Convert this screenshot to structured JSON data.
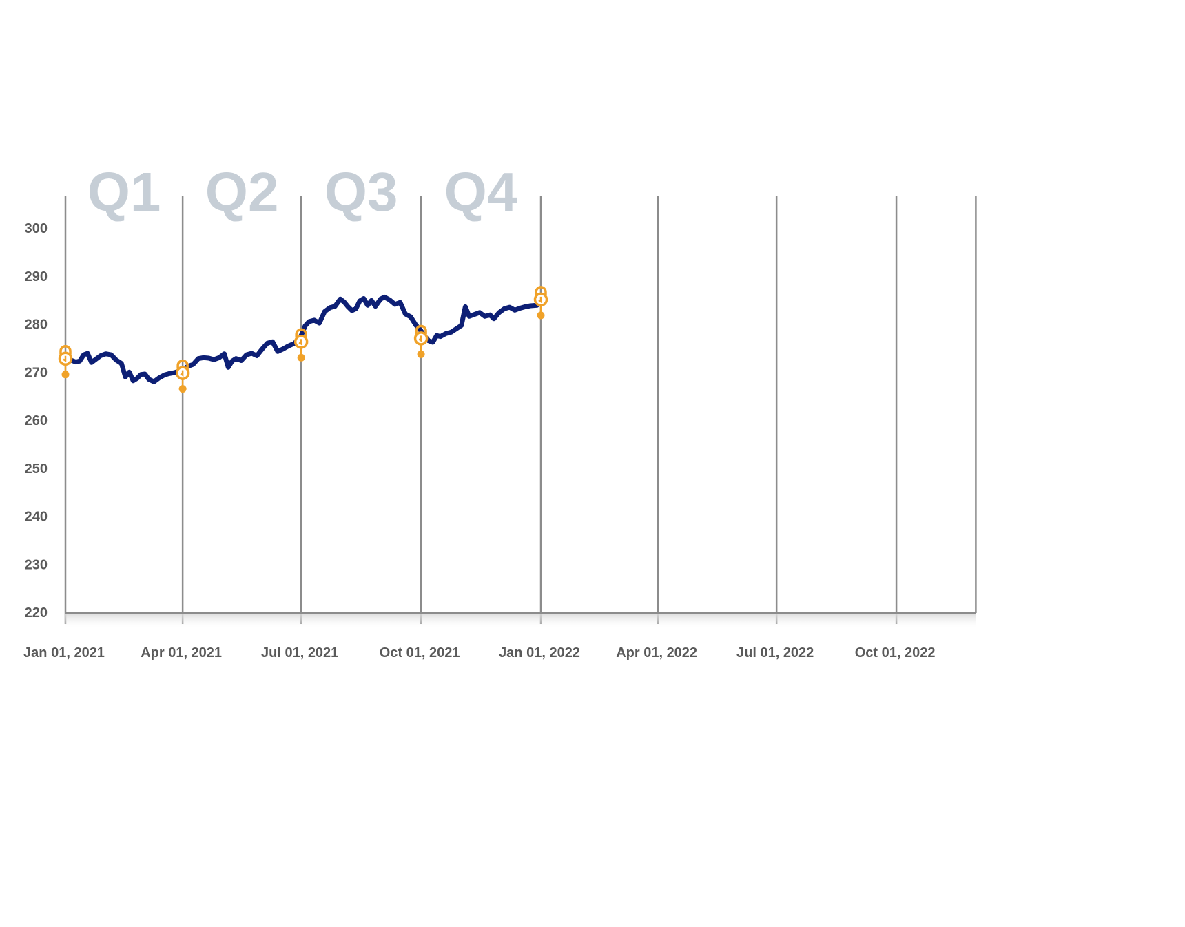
{
  "chart_data": {
    "type": "line",
    "title": "",
    "xlabel": "",
    "ylabel": "",
    "ylim": [
      220,
      300
    ],
    "y_ticks": [
      300,
      290,
      280,
      270,
      260,
      250,
      240,
      230,
      220
    ],
    "x_range": [
      "2021-01-01",
      "2022-12-01"
    ],
    "x_ticks": [
      {
        "date": "2021-01-01",
        "label": "Jan 01, 2021"
      },
      {
        "date": "2021-04-01",
        "label": "Apr 01, 2021"
      },
      {
        "date": "2021-07-01",
        "label": "Jul 01, 2021"
      },
      {
        "date": "2021-10-01",
        "label": "Oct 01, 2021"
      },
      {
        "date": "2022-01-01",
        "label": "Jan 01, 2022"
      },
      {
        "date": "2022-04-01",
        "label": "Apr 01, 2022"
      },
      {
        "date": "2022-07-01",
        "label": "Jul 01, 2022"
      },
      {
        "date": "2022-10-01",
        "label": "Oct 01, 2022"
      }
    ],
    "quarters": [
      {
        "label": "Q1",
        "start": "2021-01-01",
        "end": "2021-04-01"
      },
      {
        "label": "Q2",
        "start": "2021-04-01",
        "end": "2021-07-01"
      },
      {
        "label": "Q3",
        "start": "2021-07-01",
        "end": "2021-10-01"
      },
      {
        "label": "Q4",
        "start": "2021-10-01",
        "end": "2022-01-01"
      }
    ],
    "grid": "vertical",
    "series": [
      {
        "color": "#0d1f75",
        "points": [
          [
            "2021-01-03",
            272.6
          ],
          [
            "2021-01-06",
            272.4
          ],
          [
            "2021-01-09",
            272.1
          ],
          [
            "2021-01-12",
            272.3
          ],
          [
            "2021-01-15",
            273.6
          ],
          [
            "2021-01-18",
            273.9
          ],
          [
            "2021-01-21",
            272.0
          ],
          [
            "2021-01-24",
            272.6
          ],
          [
            "2021-01-28",
            273.4
          ],
          [
            "2021-02-01",
            273.8
          ],
          [
            "2021-02-05",
            273.6
          ],
          [
            "2021-02-09",
            272.5
          ],
          [
            "2021-02-13",
            271.8
          ],
          [
            "2021-02-16",
            269.0
          ],
          [
            "2021-02-19",
            270.0
          ],
          [
            "2021-02-22",
            268.2
          ],
          [
            "2021-02-25",
            268.7
          ],
          [
            "2021-02-28",
            269.5
          ],
          [
            "2021-03-03",
            269.6
          ],
          [
            "2021-03-06",
            268.5
          ],
          [
            "2021-03-10",
            268.0
          ],
          [
            "2021-03-14",
            268.8
          ],
          [
            "2021-03-18",
            269.4
          ],
          [
            "2021-03-22",
            269.7
          ],
          [
            "2021-03-26",
            269.9
          ],
          [
            "2021-04-01",
            270.5
          ],
          [
            "2021-04-05",
            271.2
          ],
          [
            "2021-04-09",
            271.6
          ],
          [
            "2021-04-13",
            272.8
          ],
          [
            "2021-04-17",
            273.0
          ],
          [
            "2021-04-21",
            272.9
          ],
          [
            "2021-04-25",
            272.6
          ],
          [
            "2021-04-29",
            273.0
          ],
          [
            "2021-05-03",
            273.8
          ],
          [
            "2021-05-06",
            271.0
          ],
          [
            "2021-05-09",
            272.3
          ],
          [
            "2021-05-12",
            272.8
          ],
          [
            "2021-05-16",
            272.4
          ],
          [
            "2021-05-20",
            273.6
          ],
          [
            "2021-05-24",
            273.9
          ],
          [
            "2021-05-28",
            273.4
          ],
          [
            "2021-06-01",
            274.8
          ],
          [
            "2021-06-05",
            276.0
          ],
          [
            "2021-06-09",
            276.3
          ],
          [
            "2021-06-13",
            274.3
          ],
          [
            "2021-06-17",
            274.8
          ],
          [
            "2021-06-21",
            275.4
          ],
          [
            "2021-06-26",
            276.0
          ],
          [
            "2021-07-01",
            277.6
          ],
          [
            "2021-07-04",
            279.6
          ],
          [
            "2021-07-07",
            280.5
          ],
          [
            "2021-07-11",
            280.8
          ],
          [
            "2021-07-15",
            280.2
          ],
          [
            "2021-07-19",
            282.6
          ],
          [
            "2021-07-23",
            283.4
          ],
          [
            "2021-07-27",
            283.7
          ],
          [
            "2021-07-31",
            285.2
          ],
          [
            "2021-08-03",
            284.6
          ],
          [
            "2021-08-06",
            283.6
          ],
          [
            "2021-08-09",
            282.8
          ],
          [
            "2021-08-12",
            283.2
          ],
          [
            "2021-08-15",
            284.8
          ],
          [
            "2021-08-18",
            285.3
          ],
          [
            "2021-08-21",
            283.9
          ],
          [
            "2021-08-24",
            284.9
          ],
          [
            "2021-08-27",
            283.7
          ],
          [
            "2021-08-31",
            285.2
          ],
          [
            "2021-09-03",
            285.6
          ],
          [
            "2021-09-07",
            285.0
          ],
          [
            "2021-09-11",
            284.1
          ],
          [
            "2021-09-15",
            284.5
          ],
          [
            "2021-09-19",
            282.1
          ],
          [
            "2021-09-23",
            281.5
          ],
          [
            "2021-09-27",
            279.8
          ],
          [
            "2021-10-01",
            278.6
          ],
          [
            "2021-10-04",
            277.4
          ],
          [
            "2021-10-07",
            276.5
          ],
          [
            "2021-10-10",
            276.2
          ],
          [
            "2021-10-13",
            277.6
          ],
          [
            "2021-10-16",
            277.4
          ],
          [
            "2021-10-20",
            278.0
          ],
          [
            "2021-10-24",
            278.3
          ],
          [
            "2021-10-28",
            279.0
          ],
          [
            "2021-11-01",
            279.7
          ],
          [
            "2021-11-04",
            283.6
          ],
          [
            "2021-11-07",
            281.6
          ],
          [
            "2021-11-11",
            282.0
          ],
          [
            "2021-11-15",
            282.4
          ],
          [
            "2021-11-19",
            281.6
          ],
          [
            "2021-11-23",
            281.9
          ],
          [
            "2021-11-26",
            281.1
          ],
          [
            "2021-11-30",
            282.4
          ],
          [
            "2021-12-04",
            283.2
          ],
          [
            "2021-12-08",
            283.5
          ],
          [
            "2021-12-12",
            282.9
          ],
          [
            "2021-12-16",
            283.3
          ],
          [
            "2021-12-20",
            283.6
          ],
          [
            "2021-12-24",
            283.8
          ],
          [
            "2021-12-29",
            283.9
          ]
        ]
      }
    ],
    "markers": {
      "icon": "lock-pin-icon",
      "color": "#f0a229",
      "points": [
        [
          "2021-01-01",
          272.8
        ],
        [
          "2021-04-01",
          269.8
        ],
        [
          "2021-07-01",
          276.3
        ],
        [
          "2021-10-01",
          277.0
        ],
        [
          "2022-01-01",
          285.1
        ]
      ]
    }
  }
}
